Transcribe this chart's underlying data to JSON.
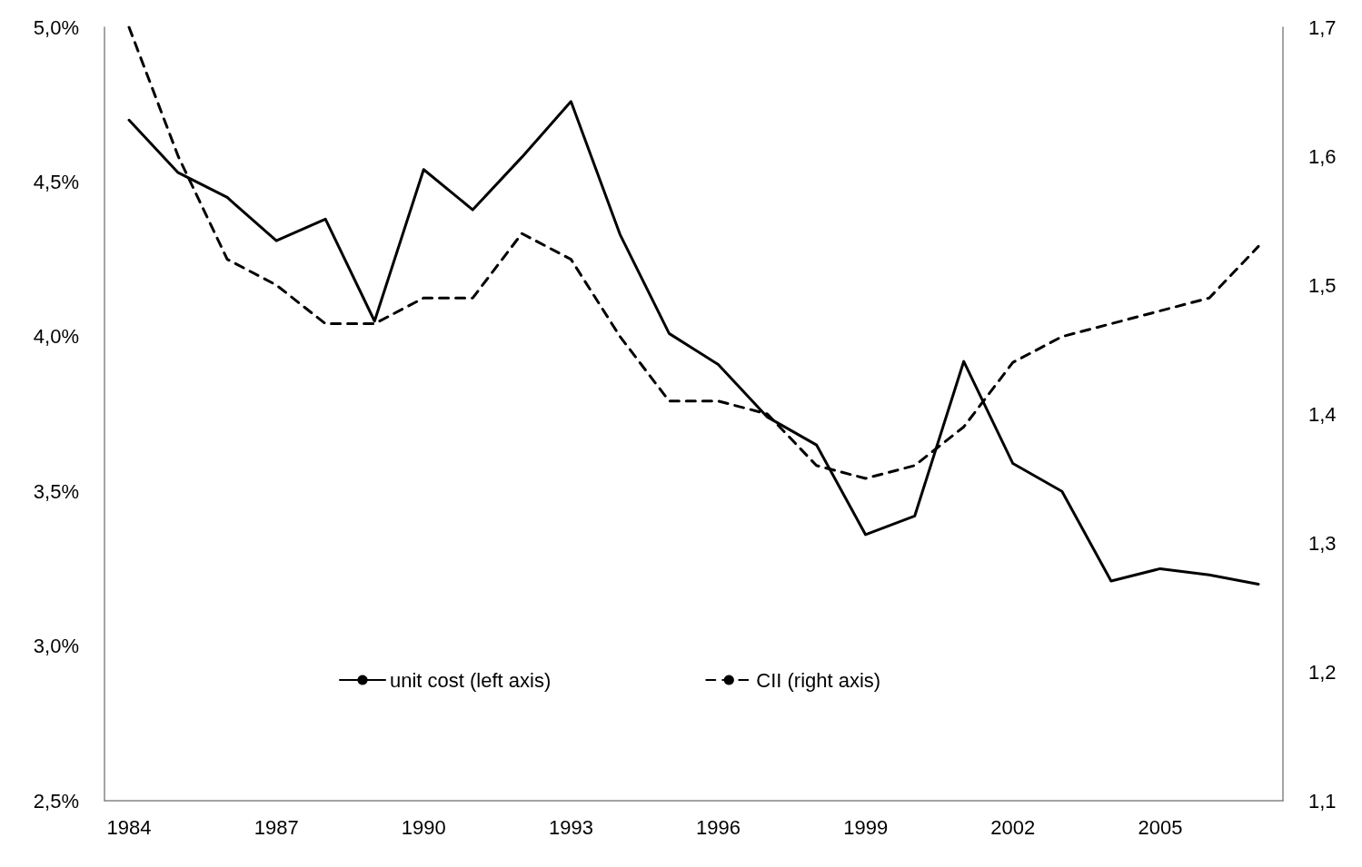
{
  "chart_data": {
    "type": "line",
    "categories": [
      "1984",
      null,
      null,
      "1987",
      null,
      null,
      "1990",
      null,
      null,
      "1993",
      null,
      null,
      "1996",
      null,
      null,
      "1999",
      null,
      null,
      "2002",
      null,
      null,
      "2005",
      null,
      null
    ],
    "series": [
      {
        "name": "unit cost (left axis)",
        "color": "#000000",
        "line_style": "solid",
        "values": [
          4.7,
          4.53,
          4.45,
          4.31,
          4.38,
          4.05,
          4.54,
          4.41,
          4.58,
          4.76,
          4.33,
          4.01,
          3.91,
          3.74,
          3.65,
          3.36,
          3.42,
          3.92,
          3.59,
          3.5,
          3.21,
          3.25,
          3.23,
          3.2
        ]
      },
      {
        "name": "CII (right axis)",
        "color": "#000000",
        "line_style": "dashed",
        "axis": "y2",
        "values": [
          1.7,
          1.6,
          1.52,
          1.5,
          1.47,
          1.47,
          1.49,
          1.49,
          1.54,
          1.52,
          1.46,
          1.41,
          1.41,
          1.4,
          1.36,
          1.35,
          1.36,
          1.39,
          1.44,
          1.46,
          1.47,
          1.48,
          1.49,
          1.53
        ]
      }
    ],
    "ylim": [
      2.5,
      5.0
    ],
    "yticks": [
      {
        "value": 2.5,
        "label": "2,5%"
      },
      {
        "value": 3.0,
        "label": "3,0%"
      },
      {
        "value": 3.5,
        "label": "3,5%"
      },
      {
        "value": 4.0,
        "label": "4,0%"
      },
      {
        "value": 4.5,
        "label": "4,5%"
      },
      {
        "value": 5.0,
        "label": "5,0%"
      }
    ],
    "y2lim": [
      1.1,
      1.7
    ],
    "y2ticks": [
      {
        "value": 1.1,
        "label": "1,1"
      },
      {
        "value": 1.2,
        "label": "1,2"
      },
      {
        "value": 1.3,
        "label": "1,3"
      },
      {
        "value": 1.4,
        "label": "1,4"
      },
      {
        "value": 1.5,
        "label": "1,5"
      },
      {
        "value": 1.6,
        "label": "1,6"
      },
      {
        "value": 1.7,
        "label": "1,7"
      }
    ],
    "legend": "bottom",
    "grid": false,
    "marker": "none"
  }
}
